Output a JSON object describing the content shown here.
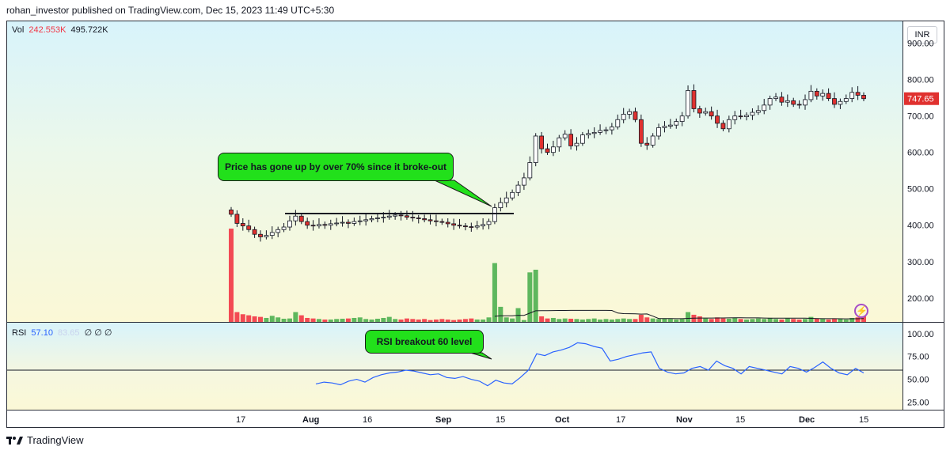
{
  "header": {
    "text": "rohan_investor published on TradingView.com, Dec 15, 2023 11:49 UTC+5:30"
  },
  "legend": {
    "vol_label": "Vol",
    "vol_value_1": "242.553K",
    "vol_value_2": "495.722K",
    "rsi_label": "RSI",
    "rsi_value": "57.10",
    "rsi_value_2": "83.65",
    "rsi_na": "∅ ∅ ∅"
  },
  "currency": "INR",
  "last_price": "747.65",
  "annotations": {
    "price": "Price has gone up by over 70% since it broke-out",
    "rsi": "RSI breakout 60 level"
  },
  "footer": {
    "brand": "TradingView"
  },
  "colors": {
    "up": "#ffffff",
    "down": "#e0312f",
    "vol_up": "#4caf50",
    "vol_down": "#f23645",
    "rsi": "#2962ff",
    "callout": "#22e01b"
  },
  "chart_data": [
    {
      "type": "candlestick",
      "title": "",
      "ylim": [
        130,
        960
      ],
      "yticks": [
        "200.00",
        "300.00",
        "400.00",
        "500.00",
        "600.00",
        "700.00",
        "800.00",
        "900.00"
      ],
      "x_ticks": [
        "17",
        "Aug",
        "16",
        "Sep",
        "15",
        "Oct",
        "17",
        "Nov",
        "15",
        "Dec",
        "15"
      ],
      "breakout_level": 432,
      "closes": [
        430,
        405,
        398,
        388,
        375,
        368,
        372,
        380,
        388,
        395,
        412,
        425,
        410,
        400,
        398,
        402,
        400,
        404,
        406,
        408,
        405,
        410,
        412,
        415,
        418,
        420,
        422,
        425,
        428,
        426,
        422,
        420,
        418,
        415,
        412,
        410,
        408,
        404,
        400,
        398,
        396,
        395,
        398,
        402,
        410,
        448,
        462,
        475,
        490,
        510,
        530,
        572,
        645,
        610,
        600,
        615,
        640,
        650,
        618,
        625,
        648,
        652,
        655,
        660,
        662,
        670,
        690,
        705,
        712,
        690,
        625,
        620,
        645,
        668,
        672,
        675,
        685,
        700,
        770,
        720,
        708,
        712,
        700,
        680,
        665,
        690,
        700,
        698,
        702,
        710,
        715,
        730,
        748,
        752,
        738,
        742,
        732,
        730,
        745,
        768,
        755,
        762,
        748,
        732,
        740,
        748,
        765,
        757,
        747.65
      ],
      "volume": [
        355,
        40,
        32,
        28,
        24,
        22,
        18,
        26,
        20,
        15,
        16,
        40,
        28,
        18,
        16,
        14,
        12,
        12,
        14,
        15,
        16,
        18,
        20,
        14,
        12,
        15,
        18,
        22,
        14,
        12,
        16,
        14,
        12,
        14,
        10,
        12,
        14,
        12,
        10,
        12,
        14,
        16,
        12,
        12,
        20,
        225,
        60,
        20,
        16,
        55,
        10,
        190,
        200,
        24,
        16,
        18,
        14,
        16,
        15,
        14,
        12,
        14,
        16,
        12,
        14,
        12,
        14,
        16,
        14,
        14,
        30,
        20,
        16,
        14,
        15,
        14,
        12,
        14,
        40,
        30,
        24,
        16,
        14,
        20,
        16,
        15,
        18,
        14,
        12,
        14,
        16,
        14,
        18,
        14,
        12,
        16,
        14,
        12,
        14,
        22,
        16,
        14,
        12,
        14,
        16,
        12,
        18,
        20,
        24
      ]
    },
    {
      "type": "line",
      "title": "",
      "name": "RSI",
      "ylim": [
        15,
        112
      ],
      "yticks": [
        "25.00",
        "50.00",
        "75.00",
        "100.00"
      ],
      "level": 60,
      "values": [
        45,
        47,
        46,
        44,
        48,
        50,
        47,
        52,
        55,
        57,
        58,
        60,
        59,
        57,
        55,
        56,
        52,
        51,
        53,
        50,
        48,
        43,
        49,
        46,
        45,
        52,
        60,
        78,
        76,
        80,
        82,
        85,
        90,
        89,
        86,
        84,
        70,
        72,
        75,
        77,
        79,
        80,
        62,
        58,
        56,
        57,
        62,
        64,
        60,
        70,
        65,
        62,
        56,
        64,
        62,
        60,
        58,
        56,
        64,
        62,
        58,
        63,
        69,
        62,
        57,
        55,
        62,
        57
      ]
    }
  ]
}
